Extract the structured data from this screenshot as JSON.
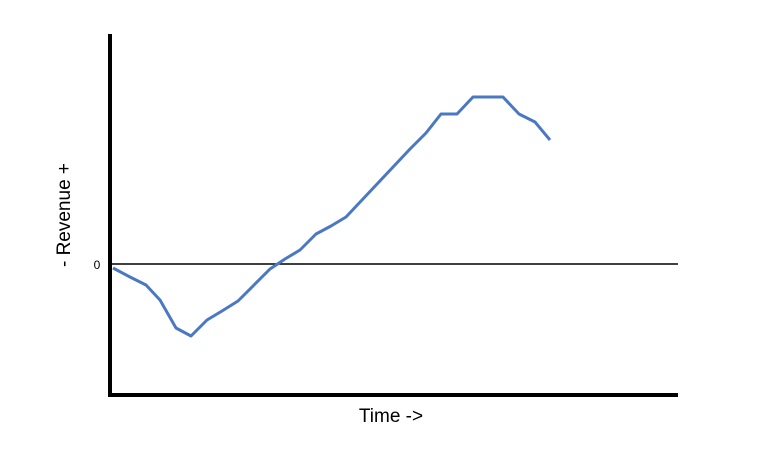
{
  "chart_data": {
    "type": "line",
    "x_label": "Time ->",
    "y_label": "- Revenue +",
    "x": [
      0.3,
      2,
      3.6,
      5,
      6.6,
      8.1,
      9.7,
      11.2,
      12.8,
      14.4,
      16,
      17.5,
      19,
      20.6,
      22.1,
      23.6,
      25.2,
      26.8,
      28.4,
      30,
      31.6,
      33.1,
      34.7,
      36.3,
      37.8,
      39.3,
      40.9,
      42.5,
      44
    ],
    "series": [
      {
        "name": "Revenue",
        "color": "#4a78c2",
        "values": [
          -0.4,
          -1.3,
          -2.1,
          -3.6,
          -6.4,
          -7.2,
          -5.6,
          -4.7,
          -3.7,
          -2.1,
          -0.5,
          0.5,
          1.4,
          3,
          3.8,
          4.7,
          6.4,
          8.1,
          9.8,
          11.5,
          13.1,
          15,
          15,
          16.7,
          16.7,
          16.7,
          15,
          14.2,
          12.4
        ]
      }
    ],
    "xlim": [
      0,
      57
    ],
    "ylim": [
      -13,
      23
    ],
    "yticks": [
      0
    ],
    "grid": true,
    "legend": false
  }
}
